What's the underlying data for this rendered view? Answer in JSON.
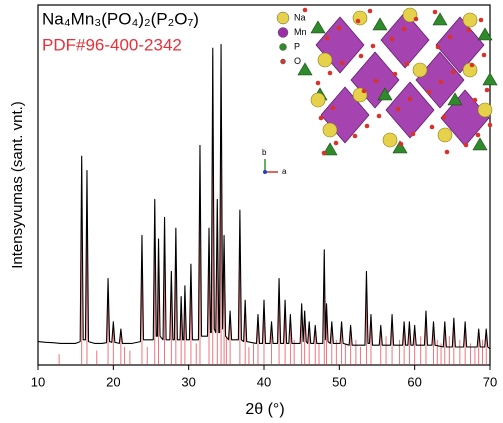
{
  "chart_data": {
    "type": "line",
    "xlabel": "2θ (°)",
    "ylabel": "Intensyvumas (sant. vnt.)",
    "xlim": [
      10,
      70
    ],
    "ylim": [
      0,
      100
    ],
    "xticks": [
      10,
      20,
      30,
      40,
      50,
      60,
      70
    ],
    "annotations": [
      "Na",
      "Mn",
      "P",
      "O",
      "b",
      "a"
    ],
    "series": [
      {
        "name": "Na₄Mn₃(PO₄)₂(P₂O₇)",
        "color": "#000000",
        "x": [
          10,
          11,
          12,
          13,
          14,
          15,
          15.6,
          15.8,
          16.0,
          16.3,
          16.5,
          16.7,
          17.5,
          18.5,
          19.1,
          19.3,
          19.5,
          19.8,
          20.0,
          20.2,
          20.8,
          21.0,
          21.2,
          22.5,
          23.6,
          23.8,
          24.0,
          25.3,
          25.5,
          25.7,
          25.85,
          26.0,
          26.2,
          26.6,
          26.8,
          27.0,
          27.5,
          27.7,
          27.9,
          28.1,
          28.3,
          28.5,
          28.85,
          29.0,
          29.2,
          29.35,
          29.5,
          29.7,
          30.1,
          30.3,
          30.5,
          31.3,
          31.5,
          31.7,
          32.5,
          32.7,
          32.9,
          33.0,
          33.2,
          33.4,
          33.6,
          33.8,
          34.0,
          34.1,
          34.3,
          34.5,
          34.7,
          34.9,
          35.3,
          35.5,
          35.7,
          36.6,
          36.8,
          37.0,
          37.3,
          37.5,
          37.7,
          39.0,
          39.2,
          39.4,
          39.8,
          40.0,
          40.2,
          40.8,
          41.0,
          41.2,
          41.8,
          42.0,
          42.2,
          42.6,
          42.8,
          43.0,
          43.3,
          43.5,
          43.7,
          44.8,
          45.0,
          45.2,
          45.4,
          45.6,
          45.8,
          46.0,
          46.2,
          46.6,
          46.8,
          47.0,
          47.8,
          48.0,
          48.15,
          48.3,
          48.5,
          48.8,
          49.0,
          49.2,
          50.1,
          50.3,
          50.5,
          51.3,
          51.5,
          51.7,
          53.4,
          53.6,
          53.8,
          54.0,
          54.2,
          54.4,
          55.3,
          55.5,
          55.7,
          56.8,
          57.0,
          57.2,
          58.4,
          58.6,
          58.8,
          59.1,
          59.3,
          59.5,
          59.8,
          60.0,
          60.2,
          61.3,
          61.5,
          61.7,
          62.3,
          62.5,
          62.7,
          63.8,
          64.0,
          64.2,
          65.0,
          65.2,
          65.4,
          66.5,
          66.7,
          66.9,
          68.3,
          68.5,
          68.7,
          69.3,
          69.5,
          69.7,
          70
        ],
        "values": [
          6.5,
          6.3,
          6.2,
          6,
          6,
          6,
          6.5,
          58,
          7,
          7,
          54,
          6.5,
          6,
          6,
          6.2,
          24,
          6.5,
          6.3,
          12,
          6.3,
          6,
          10,
          6,
          6,
          6.5,
          36,
          7,
          7,
          46,
          8,
          8,
          35,
          8,
          7,
          41,
          7,
          7,
          26,
          7,
          7,
          38,
          7,
          7,
          19,
          7,
          7,
          22,
          7,
          7,
          28,
          7,
          7,
          61,
          8,
          8,
          38,
          9,
          9,
          88,
          10,
          9,
          46,
          9,
          9,
          89,
          10,
          36,
          8,
          7,
          15,
          7,
          7,
          43,
          7,
          6.5,
          18,
          6.5,
          6,
          14,
          6,
          6,
          18,
          6,
          6,
          12,
          6,
          6,
          24,
          6,
          6,
          18,
          6,
          6,
          14,
          6,
          6,
          17,
          6.5,
          15,
          6.5,
          6,
          12,
          6,
          6,
          11,
          6,
          6,
          32,
          7,
          17,
          6.5,
          6,
          12,
          6,
          6,
          12,
          6,
          5.5,
          11,
          5.5,
          5.5,
          26,
          6,
          6,
          14,
          5.5,
          5.5,
          11,
          5.5,
          5.5,
          14,
          5.5,
          5.5,
          12,
          5.5,
          5.5,
          12,
          5.5,
          5.5,
          11,
          5.5,
          5.5,
          15,
          5.5,
          5.5,
          12,
          5.5,
          5,
          12,
          5,
          5,
          13,
          5,
          5,
          12,
          5,
          5,
          10,
          5,
          5,
          10,
          5,
          4.5
        ]
      },
      {
        "name": "PDF#96-400-2342",
        "color": "#e8303a",
        "type": "stick",
        "x": [
          12.8,
          15.8,
          16.5,
          17.8,
          19.3,
          20.0,
          21.0,
          21.5,
          22.2,
          23.8,
          24.5,
          25.5,
          26.0,
          26.8,
          27.7,
          28.3,
          29.0,
          29.5,
          30.3,
          31.0,
          31.5,
          32.7,
          33.2,
          33.8,
          34.3,
          34.7,
          35.0,
          35.5,
          36.8,
          37.5,
          38.0,
          38.6,
          39.2,
          40.0,
          41.0,
          42.0,
          42.8,
          43.5,
          44.0,
          45.0,
          45.4,
          46.0,
          46.8,
          47.3,
          48.0,
          48.3,
          49.0,
          49.6,
          50.3,
          50.8,
          51.5,
          52.2,
          52.8,
          53.6,
          54.2,
          55.5,
          56.2,
          57.0,
          58.0,
          58.6,
          59.3,
          60.0,
          60.8,
          61.5,
          62.5,
          63.0,
          63.5,
          64.0,
          64.6,
          65.2,
          66.0,
          66.7,
          67.4,
          68.0,
          68.5,
          69.0,
          69.5
        ],
        "values": [
          3,
          56,
          52,
          4,
          22,
          10,
          9,
          5,
          4,
          34,
          5,
          44,
          33,
          39,
          24,
          36,
          17,
          20,
          26,
          6,
          59,
          36,
          86,
          44,
          87,
          34,
          8,
          13,
          41,
          16,
          5,
          6,
          12,
          16,
          10,
          22,
          16,
          12,
          7,
          15,
          13,
          10,
          9,
          6,
          30,
          15,
          10,
          7,
          10,
          6,
          9,
          7,
          5,
          24,
          12,
          9,
          8,
          12,
          7,
          10,
          10,
          9,
          8,
          13,
          10,
          7,
          6,
          10,
          8,
          11,
          7,
          10,
          6,
          5,
          8,
          7,
          8
        ]
      }
    ]
  }
}
